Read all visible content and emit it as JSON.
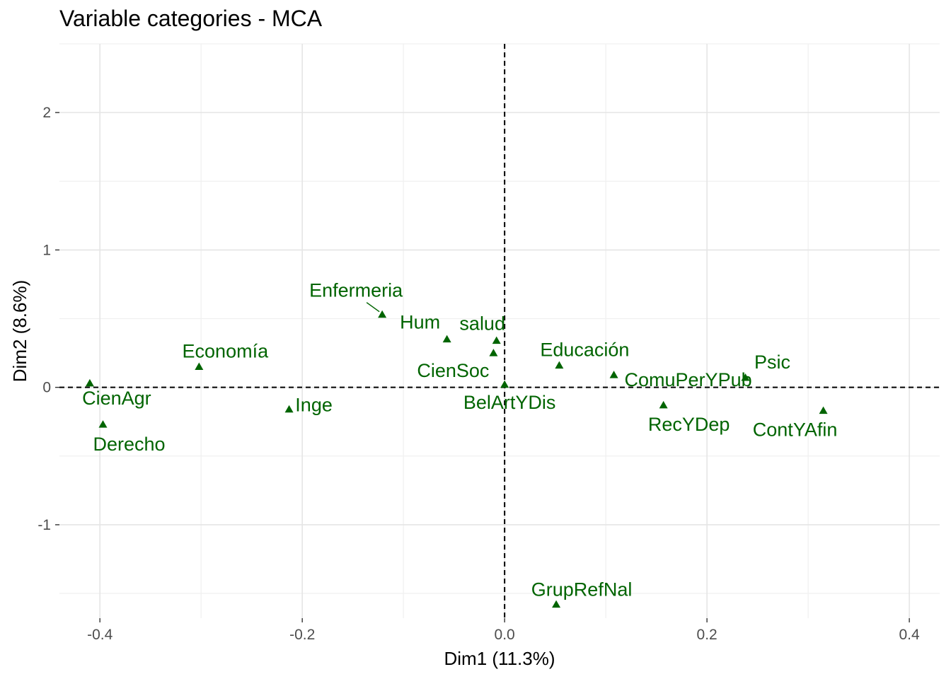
{
  "chart_data": {
    "type": "scatter",
    "title": "Variable categories - MCA",
    "xlabel": "Dim1 (11.3%)",
    "ylabel": "Dim2 (8.6%)",
    "xlim": [
      -0.44,
      0.43
    ],
    "ylim": [
      -1.68,
      2.5
    ],
    "xticks": [
      -0.4,
      -0.2,
      0.0,
      0.2,
      0.4
    ],
    "xtick_labels": [
      "-0.4",
      "-0.2",
      "0.0",
      "0.2",
      "0.4"
    ],
    "yticks": [
      -1,
      0,
      1,
      2
    ],
    "ytick_labels": [
      "-1",
      "0",
      "1",
      "2"
    ],
    "grid": true,
    "reference_lines": {
      "x": 0,
      "y": 0,
      "style": "dashed"
    },
    "marker": "triangle",
    "color": "#006400",
    "points": [
      {
        "label": "CienAgr",
        "x": -0.41,
        "y": 0.03
      },
      {
        "label": "Derecho",
        "x": -0.397,
        "y": -0.27
      },
      {
        "label": "Economía",
        "x": -0.302,
        "y": 0.15
      },
      {
        "label": "Inge",
        "x": -0.213,
        "y": -0.16
      },
      {
        "label": "Enfermeria",
        "x": -0.121,
        "y": 0.53
      },
      {
        "label": "Hum",
        "x": -0.057,
        "y": 0.35
      },
      {
        "label": "salud",
        "x": -0.008,
        "y": 0.34
      },
      {
        "label": "CienSoc",
        "x": -0.011,
        "y": 0.25
      },
      {
        "label": "BelArtYDis",
        "x": 0.0,
        "y": 0.02
      },
      {
        "label": "Educación",
        "x": 0.054,
        "y": 0.16
      },
      {
        "label": "ComuPerYPub",
        "x": 0.108,
        "y": 0.09
      },
      {
        "label": "RecYDep",
        "x": 0.157,
        "y": -0.13
      },
      {
        "label": "Psic",
        "x": 0.238,
        "y": 0.07
      },
      {
        "label": "ContYAfin",
        "x": 0.315,
        "y": -0.17
      },
      {
        "label": "GrupRefNal",
        "x": 0.051,
        "y": -1.58
      }
    ]
  }
}
